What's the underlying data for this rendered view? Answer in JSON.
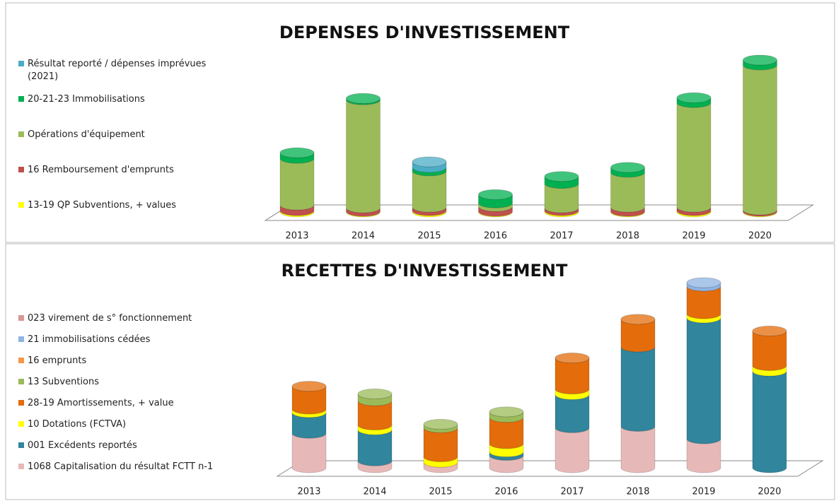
{
  "chart_data": [
    {
      "type": "stacked-cylinder",
      "title": "DEPENSES D'INVESTISSEMENT",
      "categories": [
        "2013",
        "2014",
        "2015",
        "2016",
        "2017",
        "2018",
        "2019",
        "2020"
      ],
      "series": [
        {
          "name": "Résultat reporté / dépenses imprévues (2021)",
          "color": "#4bacc6",
          "values": [
            0,
            0,
            8,
            0,
            0,
            0,
            0,
            0
          ]
        },
        {
          "name": "20-21-23 Immobilisations",
          "color": "#00b050",
          "values": [
            8,
            2,
            5,
            12,
            10,
            7,
            7,
            7
          ]
        },
        {
          "name": "Opérations d'équipement",
          "color": "#9bbb59",
          "values": [
            67,
            155,
            52,
            5,
            35,
            50,
            150,
            208
          ]
        },
        {
          "name": "16 Remboursement d'emprunts",
          "color": "#c0504d",
          "values": [
            8,
            5,
            5,
            7,
            4,
            6,
            5,
            2
          ]
        },
        {
          "name": "13-19 QP Subventions, + values",
          "color": "#ffff00",
          "values": [
            2,
            1,
            2,
            1,
            2,
            1,
            2,
            1
          ]
        }
      ]
    },
    {
      "type": "stacked-cylinder",
      "title": "RECETTES D'INVESTISSEMENT",
      "categories": [
        "2013",
        "2014",
        "2015",
        "2016",
        "2017",
        "2018",
        "2019",
        "2020"
      ],
      "series": [
        {
          "name": "023 virement de s° fonctionnement",
          "color": "#d99694",
          "values": [
            0,
            0,
            0,
            0,
            0,
            0,
            0,
            0
          ]
        },
        {
          "name": "21 immobilisations cédées",
          "color": "#8eb4e3",
          "values": [
            0,
            0,
            0,
            0,
            0,
            0,
            5,
            0
          ]
        },
        {
          "name": "16 emprunts",
          "color": "#f79646",
          "values": [
            0,
            0,
            0,
            0,
            0,
            0,
            0,
            0
          ]
        },
        {
          "name": "13 Subventions",
          "color": "#9bbb59",
          "values": [
            0,
            10,
            5,
            8,
            0,
            0,
            0,
            0
          ]
        },
        {
          "name": "28-19 Amortissements, + value",
          "color": "#e46c0a",
          "values": [
            33,
            35,
            42,
            38,
            45,
            40,
            40,
            50
          ]
        },
        {
          "name": "10 Dotations (FCTVA)",
          "color": "#ffff00",
          "values": [
            5,
            7,
            8,
            12,
            8,
            0,
            6,
            8
          ]
        },
        {
          "name": "001 Excédents reportés",
          "color": "#31859c",
          "values": [
            30,
            45,
            0,
            5,
            48,
            115,
            175,
            140
          ]
        },
        {
          "name": "1068 Capitalisation du résultat FCTT n-1",
          "color": "#e6b9b8",
          "values": [
            50,
            10,
            8,
            18,
            58,
            60,
            42,
            0
          ]
        }
      ]
    }
  ]
}
